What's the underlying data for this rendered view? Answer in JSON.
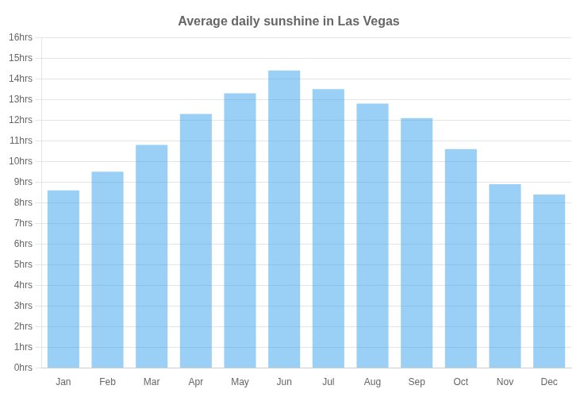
{
  "chart_data": {
    "type": "bar",
    "title": "Average daily sunshine in Las Vegas",
    "categories": [
      "Jan",
      "Feb",
      "Mar",
      "Apr",
      "May",
      "Jun",
      "Jul",
      "Aug",
      "Sep",
      "Oct",
      "Nov",
      "Dec"
    ],
    "values": [
      8.6,
      9.5,
      10.8,
      12.3,
      13.3,
      14.4,
      13.5,
      12.8,
      12.1,
      10.6,
      8.9,
      8.4
    ],
    "ylim": [
      0,
      16
    ],
    "yticks": [
      {
        "value": 0,
        "label": "0hrs"
      },
      {
        "value": 1,
        "label": "1hrs"
      },
      {
        "value": 2,
        "label": "2hrs"
      },
      {
        "value": 3,
        "label": "3hrs"
      },
      {
        "value": 4,
        "label": "4hrs"
      },
      {
        "value": 5,
        "label": "5hrs"
      },
      {
        "value": 6,
        "label": "6hrs"
      },
      {
        "value": 7,
        "label": "7hrs"
      },
      {
        "value": 8,
        "label": "8hrs"
      },
      {
        "value": 9,
        "label": "9hrs"
      },
      {
        "value": 10,
        "label": "10hrs"
      },
      {
        "value": 11,
        "label": "11hrs"
      },
      {
        "value": 12,
        "label": "12hrs"
      },
      {
        "value": 13,
        "label": "13hrs"
      },
      {
        "value": 14,
        "label": "14hrs"
      },
      {
        "value": 15,
        "label": "15hrs"
      },
      {
        "value": 16,
        "label": "16hrs"
      }
    ],
    "grid": true
  }
}
